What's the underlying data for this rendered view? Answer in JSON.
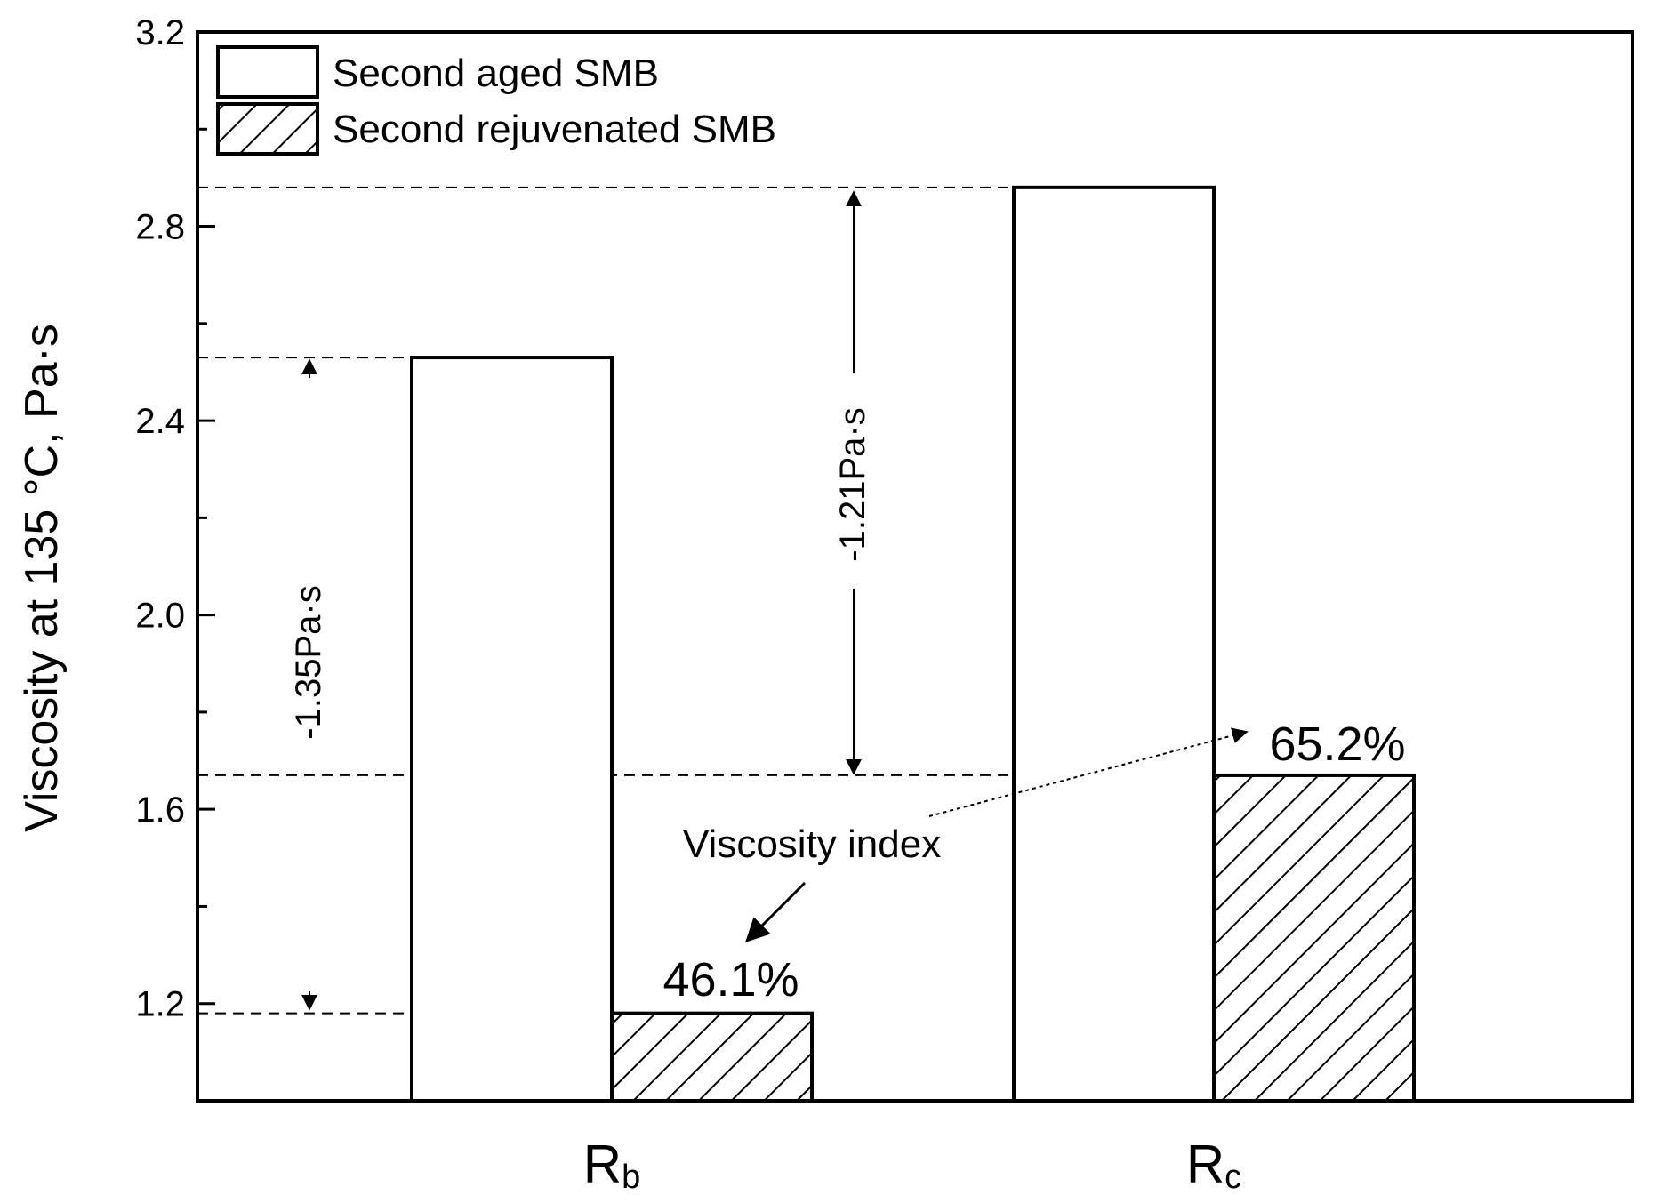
{
  "chart_data": {
    "type": "bar",
    "title": "",
    "xlabel": "",
    "ylabel": "Viscosity at 135 °C, Pa·s",
    "ylim": [
      1.0,
      3.2
    ],
    "yticks": [
      "1.2",
      "1.6",
      "2.0",
      "2.4",
      "2.8",
      "3.2"
    ],
    "categories": [
      {
        "main": "R",
        "sub": "b"
      },
      {
        "main": "R",
        "sub": "c"
      }
    ],
    "series": [
      {
        "name": "Second aged SMB",
        "values": [
          2.53,
          2.88
        ],
        "fill": "none"
      },
      {
        "name": "Second rejuvenated SMB",
        "values": [
          1.18,
          1.67
        ],
        "fill": "hatch"
      }
    ],
    "legend_position": "top-left",
    "grid": false,
    "data_labels": [
      "46.1%",
      "65.2%"
    ],
    "annotations": {
      "index_label": "Viscosity index",
      "drop_b": "-1.35Pa·s",
      "drop_c": "-1.21Pa·s"
    },
    "colors": {
      "stroke": "#000000",
      "background": "#ffffff"
    }
  }
}
